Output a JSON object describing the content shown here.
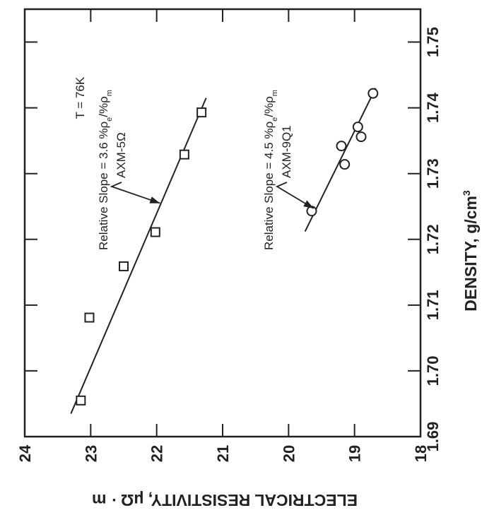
{
  "chart_data": {
    "type": "scatter",
    "orientation": "rotated-90-clockwise",
    "xlabel": "DENSITY, g/cm",
    "xlabel_superscript": "3",
    "ylabel": "ELECTRICAL RESISTIVITY, μΩ · m",
    "xlim": [
      1.69,
      1.755
    ],
    "ylim": [
      18,
      24
    ],
    "x_ticks": [
      "1.69",
      "1.70",
      "1.71",
      "1.72",
      "1.73",
      "1.74",
      "1.75"
    ],
    "y_ticks": [
      "18",
      "19",
      "20",
      "21",
      "22",
      "23",
      "24"
    ],
    "grid": false,
    "legend": "none",
    "series": [
      {
        "name": "AXM-5Q",
        "marker": "square",
        "x": [
          1.6955,
          1.7081,
          1.7159,
          1.7211,
          1.7329,
          1.7393
        ],
        "y": [
          23.15,
          23.02,
          22.5,
          22.02,
          21.58,
          21.32
        ],
        "fit_line": {
          "x": [
            1.6935,
            1.7415
          ],
          "y": [
            23.3,
            21.25
          ]
        },
        "annotation": {
          "slope_text": "Relative Slope = 3.6 %",
          "rho_e": "e",
          "rho_m": "m",
          "series_label": "AXM-5Ω",
          "at": [
            1.7255,
            21.95
          ]
        }
      },
      {
        "name": "AXM-9Q1",
        "marker": "circle",
        "x": [
          1.7243,
          1.7314,
          1.7342,
          1.7356,
          1.7371,
          1.7422
        ],
        "y": [
          19.65,
          19.15,
          19.2,
          18.9,
          18.95,
          18.72
        ],
        "fit_line": {
          "x": [
            1.7212,
            1.743
          ],
          "y": [
            19.75,
            18.68
          ]
        },
        "annotation": {
          "slope_text": "Relative Slope = 4.5 %",
          "rho_e": "e",
          "rho_m": "m",
          "series_label": "AXM-9Q1",
          "at": [
            1.7247,
            19.62
          ]
        }
      }
    ],
    "annotations": [
      {
        "text": "T = 76K",
        "x": 1.7415,
        "y": 23.1
      }
    ]
  }
}
